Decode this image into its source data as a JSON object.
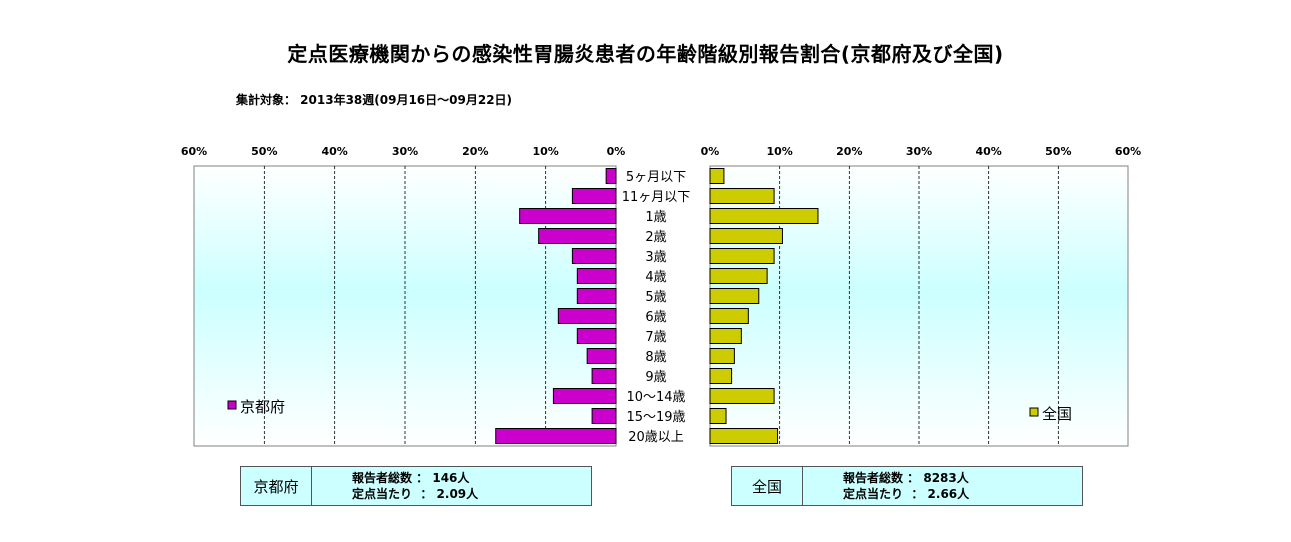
{
  "title": "定点医療機関からの感染性胃腸炎患者の年齢階級別報告割合(京都府及び全国)",
  "subtitle": "集計対象： 2013年38週(09月16日～09月22日)",
  "colors": {
    "kyoto": "#cc00cc",
    "national": "#cccc00",
    "plot_bg_top": "#ffffff",
    "plot_bg_bottom": "#ccffff",
    "info_bg": "#ccffff"
  },
  "chart_data": [
    {
      "type": "bar",
      "orientation": "horizontal",
      "direction": "right-to-left",
      "categories": [
        "5ヶ月以下",
        "11ヶ月以下",
        "1歳",
        "2歳",
        "3歳",
        "4歳",
        "5歳",
        "6歳",
        "7歳",
        "8歳",
        "9歳",
        "10～14歳",
        "15～19歳",
        "20歳以上"
      ],
      "series": [
        {
          "name": "京都府",
          "values": [
            1.4,
            6.2,
            13.7,
            11.0,
            6.2,
            5.5,
            5.5,
            8.2,
            5.5,
            4.1,
            3.4,
            8.9,
            3.4,
            17.1
          ]
        }
      ],
      "xlim": [
        0,
        60
      ],
      "ticks": [
        "60%",
        "50%",
        "40%",
        "30%",
        "20%",
        "10%",
        "0%"
      ],
      "tick_values": [
        60,
        50,
        40,
        30,
        20,
        10,
        0
      ],
      "grid": true,
      "legend_position": "bottom-left"
    },
    {
      "type": "bar",
      "orientation": "horizontal",
      "direction": "left-to-right",
      "categories": [
        "5ヶ月以下",
        "11ヶ月以下",
        "1歳",
        "2歳",
        "3歳",
        "4歳",
        "5歳",
        "6歳",
        "7歳",
        "8歳",
        "9歳",
        "10～14歳",
        "15～19歳",
        "20歳以上"
      ],
      "series": [
        {
          "name": "全国",
          "values": [
            2.0,
            9.2,
            15.5,
            10.4,
            9.2,
            8.2,
            7.0,
            5.5,
            4.5,
            3.5,
            3.1,
            9.2,
            2.3,
            9.7
          ]
        }
      ],
      "xlim": [
        0,
        60
      ],
      "ticks": [
        "0%",
        "10%",
        "20%",
        "30%",
        "40%",
        "50%",
        "60%"
      ],
      "tick_values": [
        0,
        10,
        20,
        30,
        40,
        50,
        60
      ],
      "grid": true,
      "legend_position": "bottom-right"
    }
  ],
  "info": {
    "kyoto": {
      "name": "京都府",
      "reporters": "報告者総数 ： 146人",
      "per_point": "定点当たり  ： 2.09人"
    },
    "national": {
      "name": "全国",
      "reporters": "報告者総数 ： 8283人",
      "per_point": "定点当たり  ： 2.66人"
    }
  }
}
